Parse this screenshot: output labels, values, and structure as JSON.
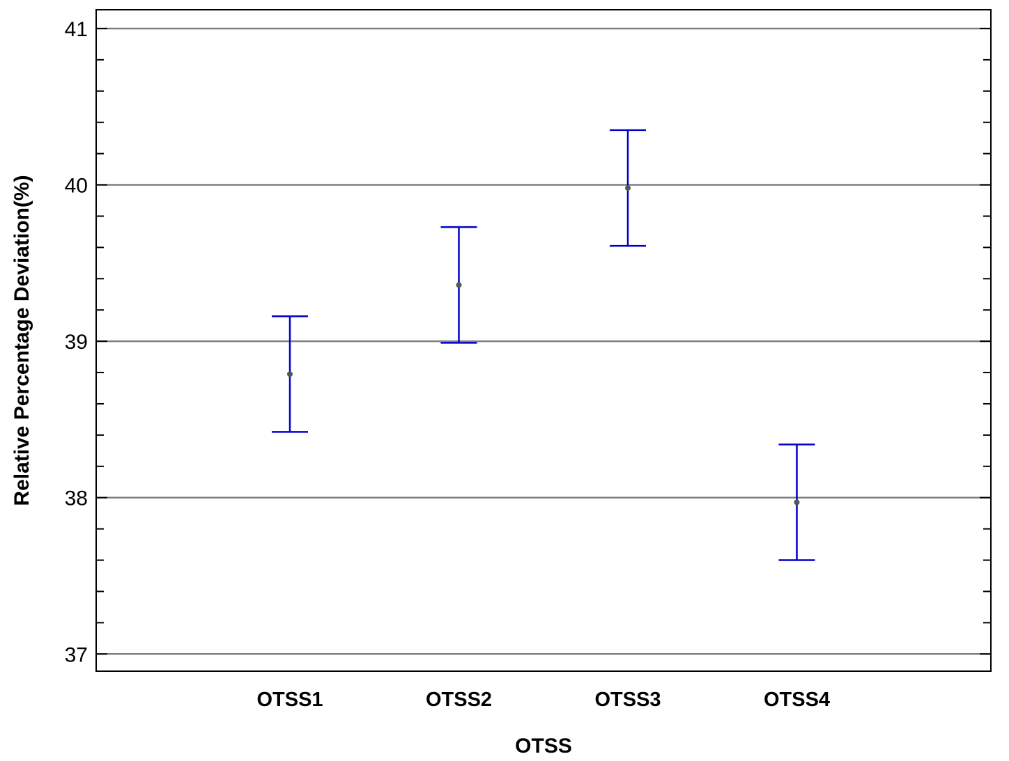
{
  "chart_data": {
    "type": "scatter",
    "categories": [
      "OTSS1",
      "OTSS2",
      "OTSS3",
      "OTSS4"
    ],
    "series": [
      {
        "means": [
          38.79,
          39.36,
          39.98,
          37.97
        ],
        "lower": [
          38.42,
          38.99,
          39.61,
          37.6
        ],
        "upper": [
          39.16,
          39.73,
          40.35,
          38.34
        ]
      }
    ],
    "xlabel": "OTSS",
    "ylabel": "Relative Percentage Deviation(%)",
    "ylim": [
      36.89,
      41.12
    ],
    "yticks": [
      "37",
      "38",
      "39",
      "40",
      "41"
    ],
    "grid": true,
    "colors": {
      "interval": "#0000cc",
      "point": "#555555",
      "grid": "#808080",
      "axis": "#000000"
    }
  }
}
